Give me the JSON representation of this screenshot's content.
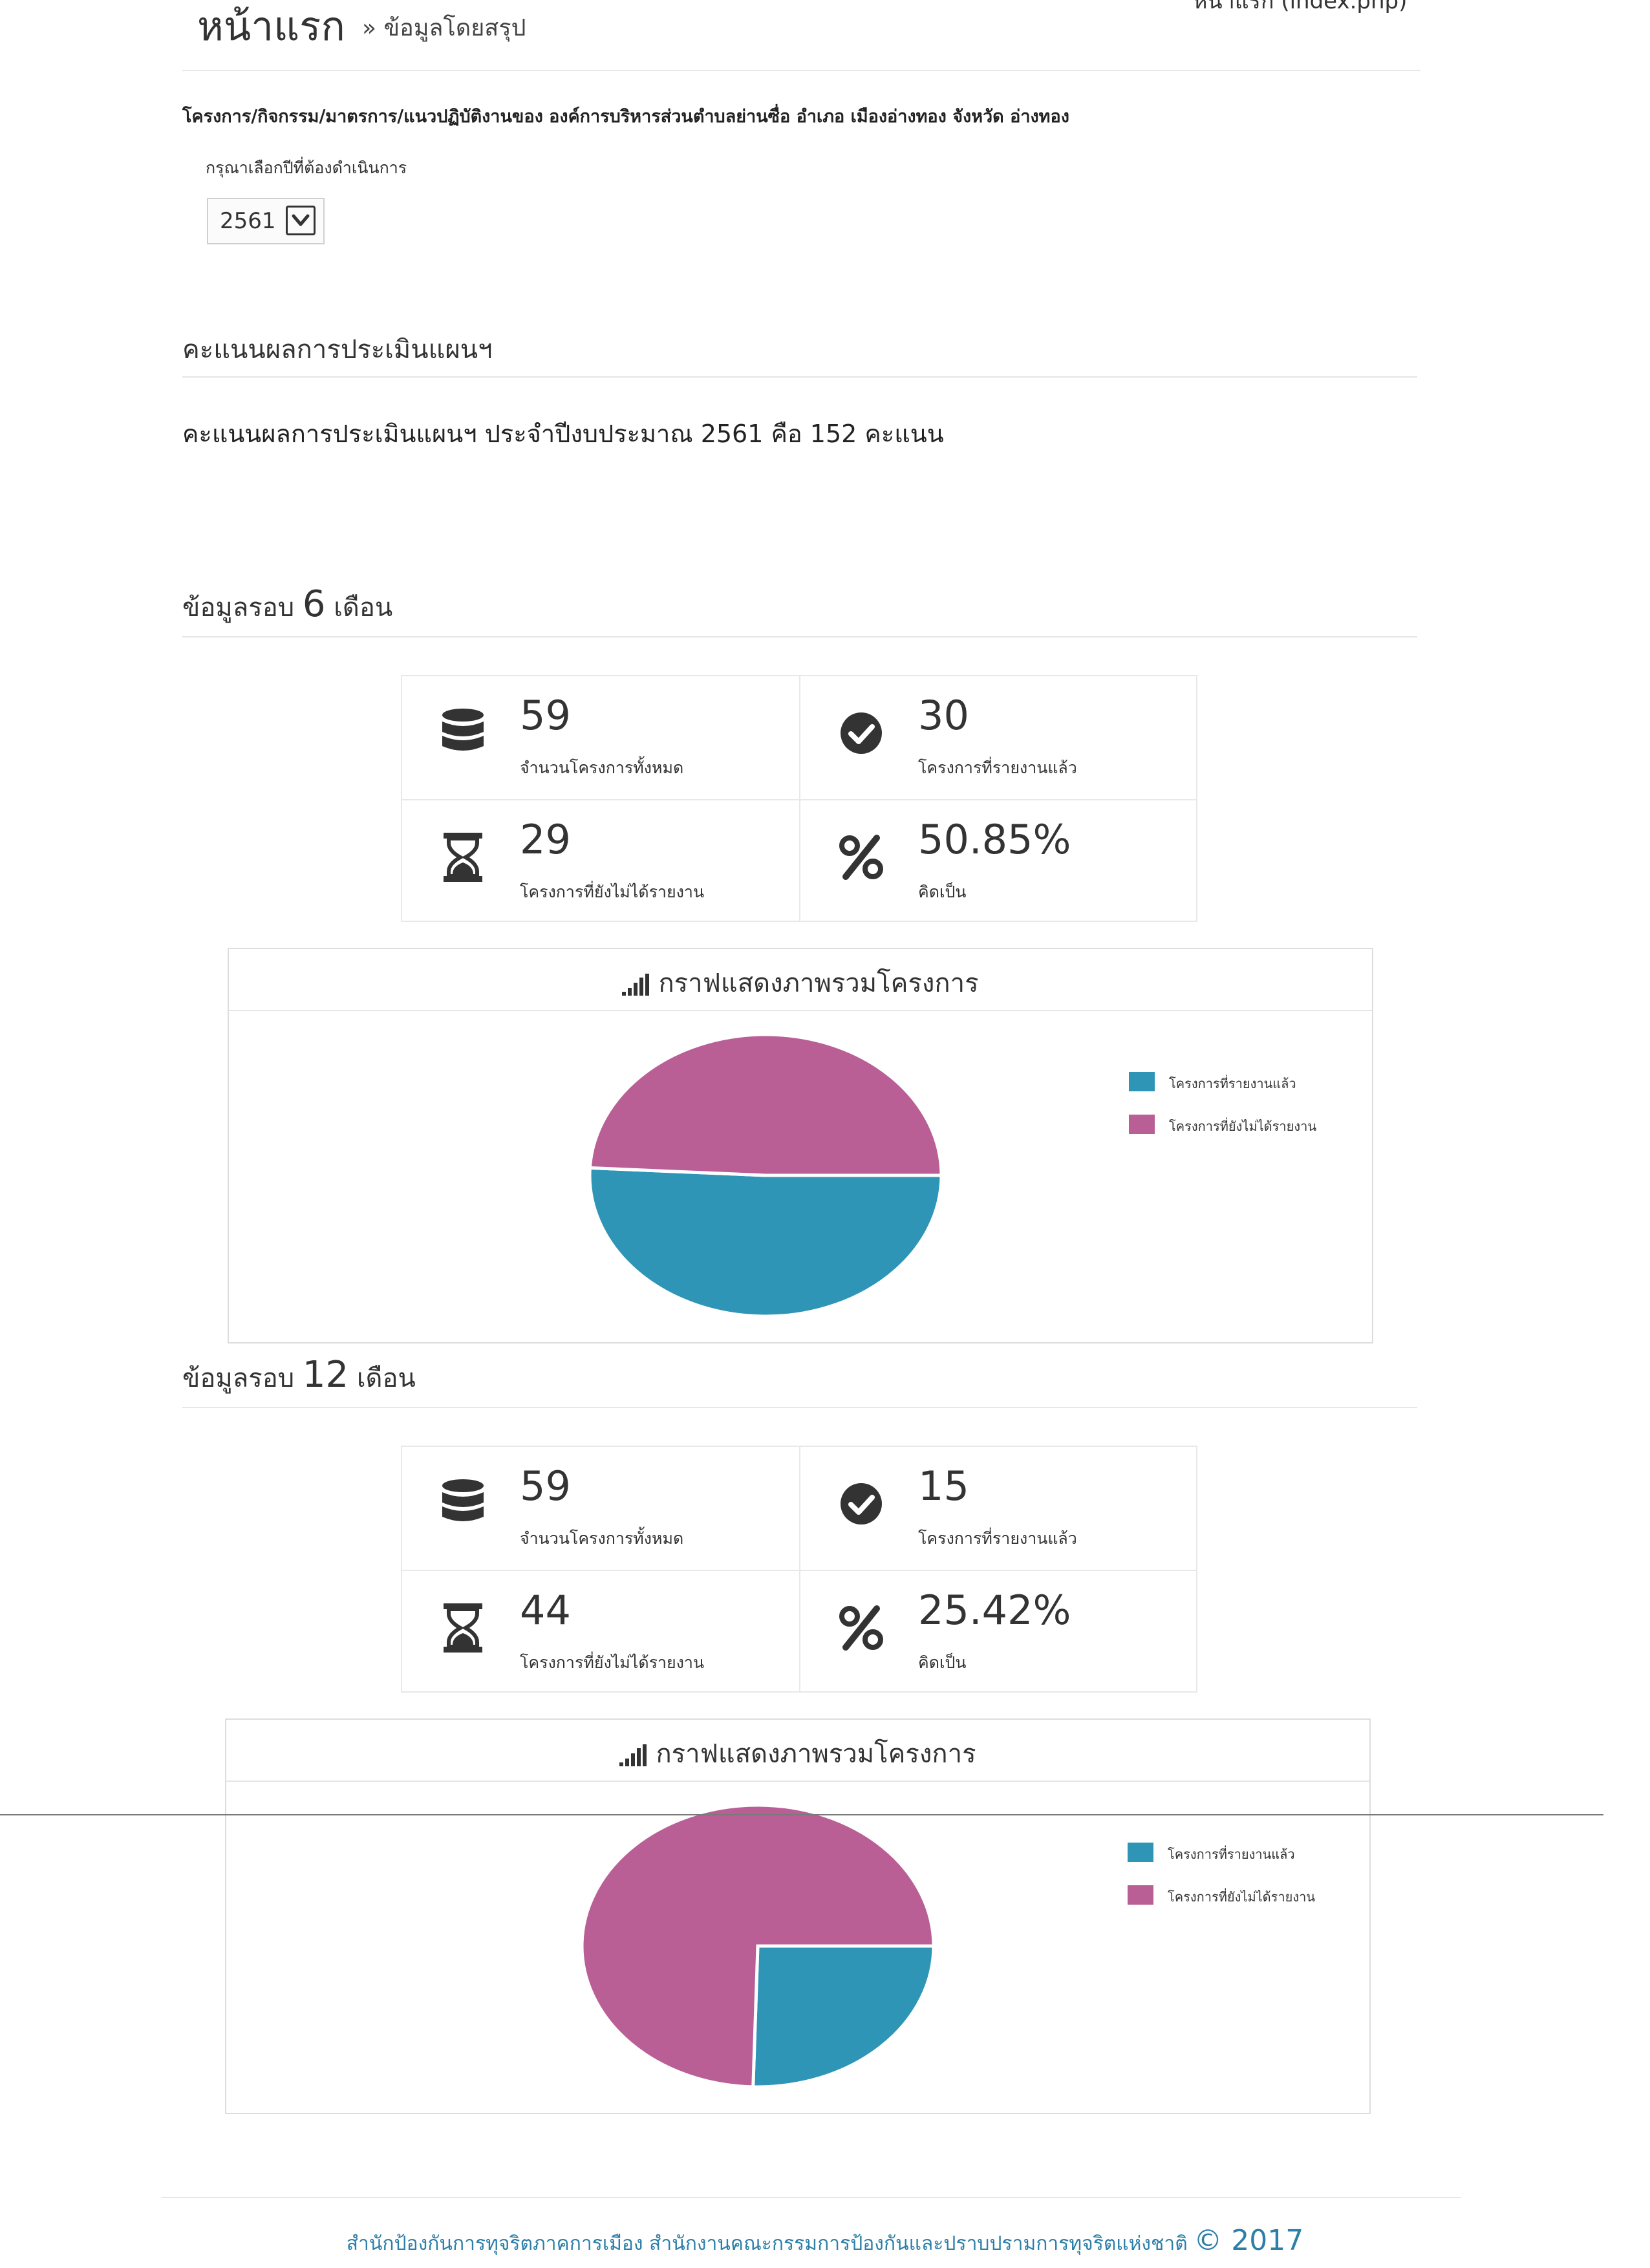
{
  "header": {
    "title": "หน้าแรก",
    "breadcrumb": "» ข้อมูลโดยสรุป",
    "top_link": "หน้าแรก (index.php)"
  },
  "org_line": "โครงการ/กิจกรรม/มาตรการ/แนวปฏิบัติงานของ องค์การบริหารส่วนตำบลย่านซื่อ อำเภอ เมืองอ่างทอง จังหวัด อ่างทอง",
  "year_select": {
    "label": "กรุณาเลือกปีที่ต้องดำเนินการ",
    "value": "2561"
  },
  "score": {
    "heading": "คะแนนผลการประเมินแผนฯ",
    "text": "คะแนนผลการประเมินแผนฯ ประจำปีงบประมาณ 2561 คือ 152 คะแนน"
  },
  "legend": {
    "reported": "โครงการที่รายงานแล้ว",
    "not_reported": "โครงการที่ยังไม่ได้รายงาน"
  },
  "colors": {
    "reported": "#2e95b7",
    "not_reported": "#b95f96",
    "footer": "#2d7fa8"
  },
  "rounds": [
    {
      "title_prefix": "ข้อมูลรอบ",
      "months": "6",
      "title_suffix": "เดือน",
      "stats": {
        "total": "59",
        "total_label": "จำนวนโครงการทั้งหมด",
        "reported": "30",
        "reported_label": "โครงการที่รายงานแล้ว",
        "pending": "29",
        "pending_label": "โครงการที่ยังไม่ได้รายงาน",
        "percent": "50.85%",
        "percent_label": "คิดเป็น"
      },
      "chart_title": "กราฟแสดงภาพรวมโครงการ"
    },
    {
      "title_prefix": "ข้อมูลรอบ",
      "months": "12",
      "title_suffix": "เดือน",
      "stats": {
        "total": "59",
        "total_label": "จำนวนโครงการทั้งหมด",
        "reported": "15",
        "reported_label": "โครงการที่รายงานแล้ว",
        "pending": "44",
        "pending_label": "โครงการที่ยังไม่ได้รายงาน",
        "percent": "25.42%",
        "percent_label": "คิดเป็น"
      },
      "chart_title": "กราฟแสดงภาพรวมโครงการ"
    }
  ],
  "chart_data": [
    {
      "type": "pie",
      "categories": [
        "โครงการที่รายงานแล้ว",
        "โครงการที่ยังไม่ได้รายงาน"
      ],
      "values": [
        30,
        29
      ],
      "colors": [
        "#2e95b7",
        "#b95f96"
      ],
      "title": "กราฟแสดงภาพรวมโครงการ",
      "legend": "right"
    },
    {
      "type": "pie",
      "categories": [
        "โครงการที่รายงานแล้ว",
        "โครงการที่ยังไม่ได้รายงาน"
      ],
      "values": [
        15,
        44
      ],
      "colors": [
        "#2e95b7",
        "#b95f96"
      ],
      "title": "กราฟแสดงภาพรวมโครงการ",
      "legend": "right"
    }
  ],
  "footer": {
    "text": "สำนักป้องกันการทุจริตภาคการเมือง สำนักงานคณะกรรมการป้องกันและปราบปรามการทุจริตแห่งชาติ",
    "copyright": "© 2017"
  }
}
